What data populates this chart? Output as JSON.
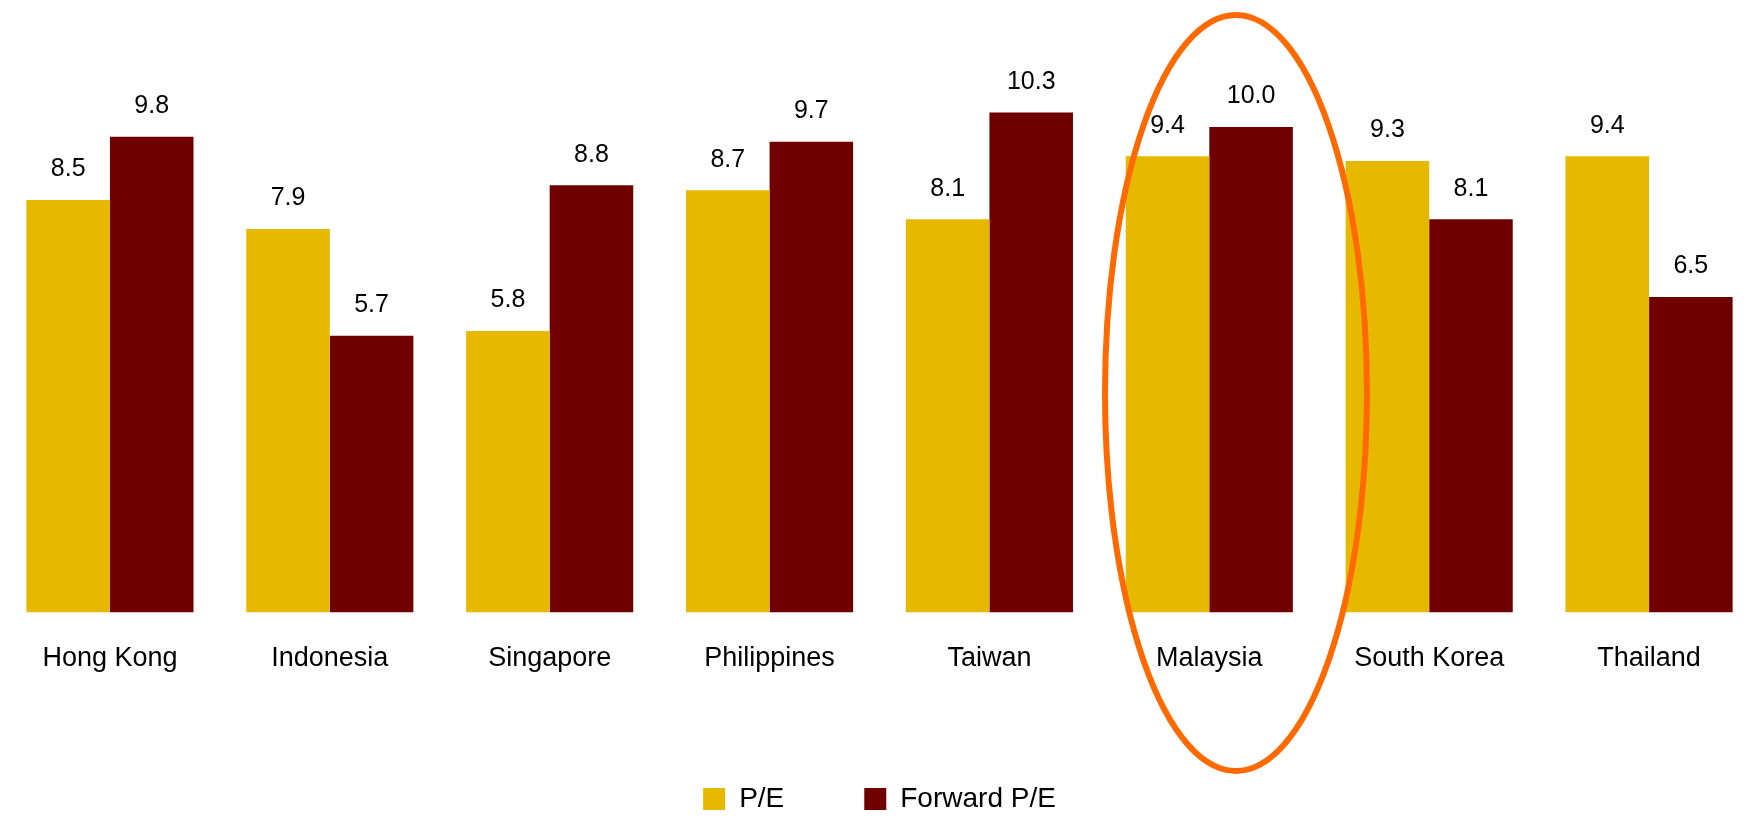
{
  "chart_data": {
    "type": "bar",
    "categories": [
      "Hong Kong",
      "Indonesia",
      "Singapore",
      "Philippines",
      "Taiwan",
      "Malaysia",
      "South Korea",
      "Thailand"
    ],
    "series": [
      {
        "name": "P/E",
        "color": "#e6b800",
        "values": [
          8.5,
          7.9,
          5.8,
          8.7,
          8.1,
          9.4,
          9.3,
          9.4
        ],
        "value_labels": [
          "8.5",
          "7.9",
          "5.8",
          "8.7",
          "8.1",
          "9.4",
          "9.3",
          "9.4"
        ]
      },
      {
        "name": "Forward P/E",
        "color": "#700000",
        "values": [
          9.8,
          5.7,
          8.8,
          9.7,
          10.3,
          10.0,
          8.1,
          6.5
        ],
        "value_labels": [
          "9.8",
          "5.7",
          "8.8",
          "9.7",
          "10.3",
          "10.0",
          "8.1",
          "6.5"
        ]
      }
    ],
    "legend": "bottom",
    "grid": false
  }
}
